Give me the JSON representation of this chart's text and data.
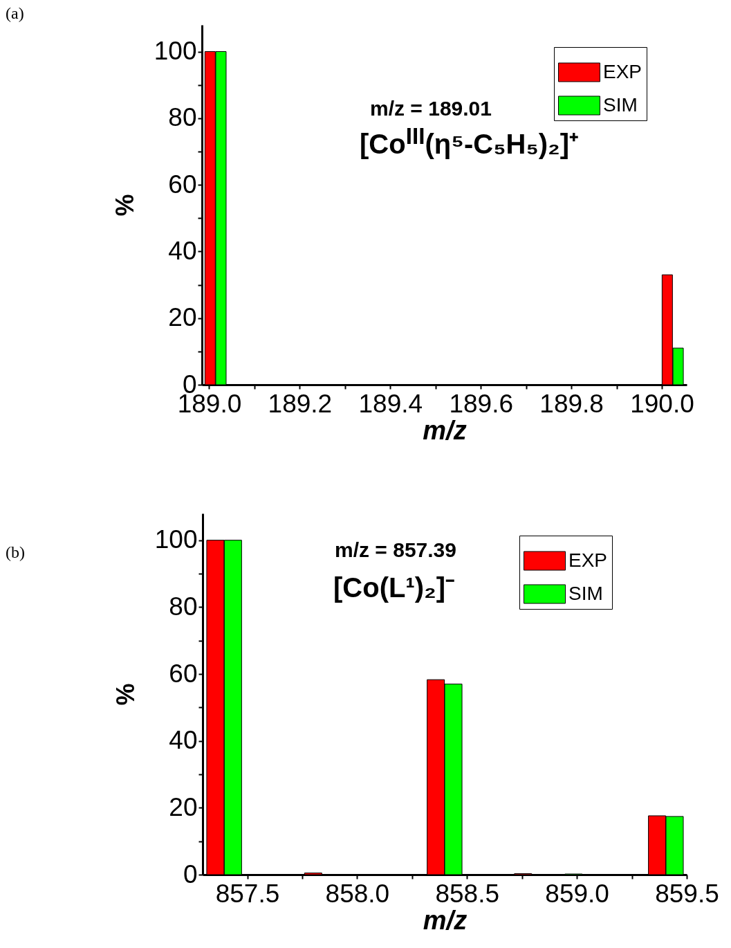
{
  "chart_data": [
    {
      "type": "bar",
      "annotations": [
        "(a)",
        "m/z = 189.01",
        "[Co$^{III}$(η⁵-C₅H₅)₂]⁺"
      ],
      "xlabel": "m/z",
      "ylabel": "%",
      "legend": "top right",
      "xlim": [
        188.984,
        190.055
      ],
      "xticks": [
        {
          "value": 189.0,
          "label": "189.0"
        },
        {
          "value": 189.1,
          "label": null
        },
        {
          "value": 189.2,
          "label": "189.2"
        },
        {
          "value": 189.3,
          "label": null
        },
        {
          "value": 189.4,
          "label": "189.4"
        },
        {
          "value": 189.5,
          "label": null
        },
        {
          "value": 189.6,
          "label": "189.6"
        },
        {
          "value": 189.7,
          "label": null
        },
        {
          "value": 189.8,
          "label": "189.8"
        },
        {
          "value": 189.9,
          "label": null
        },
        {
          "value": 190.0,
          "label": "190.0"
        }
      ],
      "ylim": [
        0,
        108
      ],
      "yticks": [
        0,
        {
          "value": 10,
          "label": null
        },
        20,
        {
          "value": 30,
          "label": null
        },
        40,
        {
          "value": 50,
          "label": null
        },
        60,
        {
          "value": 70,
          "label": null
        },
        80,
        {
          "value": 90,
          "label": null
        },
        100
      ],
      "series": [
        {
          "name": "EXP",
          "color": "#ff0000",
          "x": [
            189.002,
            190.012
          ],
          "values": [
            100,
            33
          ]
        },
        {
          "name": "SIM",
          "color": "#00ff00",
          "x": [
            189.026,
            190.036
          ],
          "values": [
            100,
            11
          ]
        }
      ]
    },
    {
      "type": "bar",
      "annotations": [
        "(b)",
        "m/z = 857.39",
        "[Co(L¹)₂]⁻"
      ],
      "xlabel": "m/z",
      "ylabel": "%",
      "legend": "top right",
      "xlim": [
        857.297,
        859.5
      ],
      "xticks": [
        {
          "value": 857.5,
          "label": "857.5"
        },
        {
          "value": 857.75,
          "label": null
        },
        {
          "value": 858.0,
          "label": "858.0"
        },
        {
          "value": 858.25,
          "label": null
        },
        {
          "value": 858.5,
          "label": "858.5"
        },
        {
          "value": 858.75,
          "label": null
        },
        {
          "value": 859.0,
          "label": "859.0"
        },
        {
          "value": 859.25,
          "label": null
        },
        {
          "value": 859.5,
          "label": "859.5"
        }
      ],
      "ylim": [
        0,
        108
      ],
      "yticks": [
        0,
        {
          "value": 10,
          "label": null
        },
        20,
        {
          "value": 30,
          "label": null
        },
        40,
        {
          "value": 50,
          "label": null
        },
        60,
        {
          "value": 70,
          "label": null
        },
        80,
        {
          "value": 90,
          "label": null
        },
        100
      ],
      "series": [
        {
          "name": "EXP",
          "color": "#ff0000",
          "x": [
            857.355,
            857.8,
            858.358,
            858.755,
            859.365
          ],
          "values": [
            100,
            0.5,
            58.3,
            0.3,
            17.6
          ]
        },
        {
          "name": "SIM",
          "color": "#00ff00",
          "x": [
            857.435,
            858.438,
            858.985,
            859.445
          ],
          "values": [
            100,
            57,
            0.2,
            17.4
          ]
        }
      ]
    }
  ]
}
